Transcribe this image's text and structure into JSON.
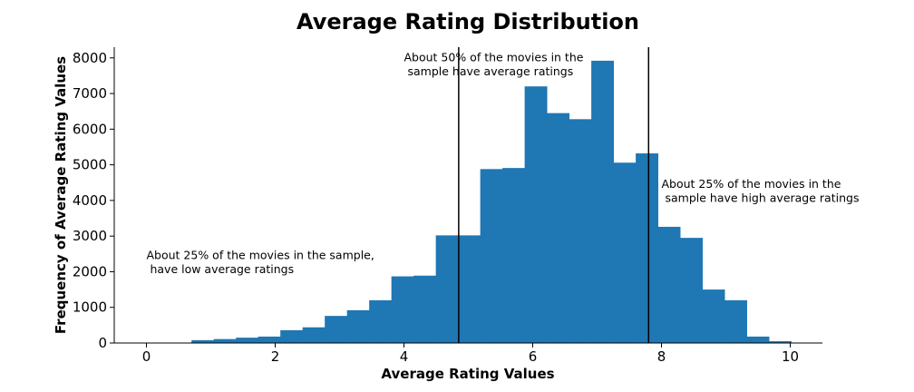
{
  "chart_data": {
    "type": "bar",
    "title": "Average Rating Distribution",
    "xlabel": "Average Rating Values",
    "ylabel": "Frequency of Average Rating Values",
    "xlim": [
      -0.5,
      10.5
    ],
    "ylim": [
      0,
      8300
    ],
    "x_ticks": [
      0,
      2,
      4,
      6,
      8,
      10
    ],
    "x_tick_labels": [
      "0",
      "2",
      "4",
      "6",
      "8",
      "10"
    ],
    "y_ticks": [
      0,
      1000,
      2000,
      3000,
      4000,
      5000,
      6000,
      7000,
      8000
    ],
    "y_tick_labels": [
      "0",
      "1000",
      "2000",
      "3000",
      "4000",
      "5000",
      "6000",
      "7000",
      "8000"
    ],
    "grid": false,
    "bar_color": "#1f77b4",
    "bin_edges": [
      0.7,
      1.045,
      1.39,
      1.735,
      2.08,
      2.425,
      2.77,
      3.115,
      3.46,
      3.805,
      4.15,
      4.495,
      4.84,
      5.185,
      5.53,
      5.875,
      6.22,
      6.565,
      6.91,
      7.255,
      7.6,
      7.945,
      8.29,
      8.635,
      8.98,
      9.325,
      9.67,
      10.015
    ],
    "values": [
      80,
      110,
      150,
      180,
      360,
      440,
      760,
      920,
      1200,
      1870,
      1890,
      3020,
      3020,
      4880,
      4910,
      7200,
      6450,
      6280,
      7920,
      5060,
      5320,
      3260,
      2950,
      1500,
      1200,
      180,
      50
    ],
    "vlines": [
      4.85,
      7.8
    ],
    "annotations": [
      {
        "lines": [
          "About 25% of the movies in the sample,",
          " have low average ratings"
        ],
        "x": 0.0,
        "y": 2350
      },
      {
        "lines": [
          "About 50% of the movies in the",
          " sample have average ratings"
        ],
        "x": 4.0,
        "y": 7900
      },
      {
        "lines": [
          "About 25% of the movies in the",
          " sample have high average ratings"
        ],
        "x": 8.0,
        "y": 4350
      }
    ]
  }
}
